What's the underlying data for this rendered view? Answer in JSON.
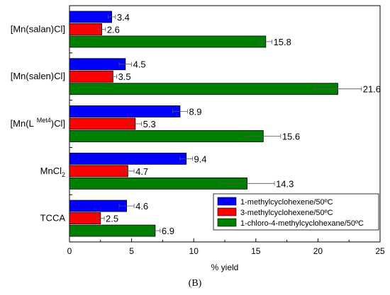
{
  "chart_data": {
    "type": "bar",
    "orientation": "horizontal",
    "categories": [
      "[Mn(salan)Cl]",
      "[Mn(salen)Cl]",
      "[Mn(L Met4)Cl]",
      "MnCl2",
      "TCCA"
    ],
    "category_display": [
      {
        "main": "[Mn(salan)Cl]",
        "sup": "",
        "sub": "",
        "tail": ""
      },
      {
        "main": "[Mn(salen)Cl]",
        "sup": "",
        "sub": "",
        "tail": ""
      },
      {
        "main": "[Mn(L",
        "sup": "Met4",
        "sub": "",
        "tail": ")Cl]"
      },
      {
        "main": "MnCl",
        "sup": "",
        "sub": "2",
        "tail": ""
      },
      {
        "main": "TCCA",
        "sup": "",
        "sub": "",
        "tail": ""
      }
    ],
    "series": [
      {
        "name": "1-methylcyclohexene/50ºC",
        "color": "#0000ff",
        "values": [
          3.4,
          4.5,
          8.9,
          9.4,
          4.6
        ],
        "errors": [
          0.3,
          0.5,
          0.6,
          0.5,
          0.6
        ]
      },
      {
        "name": "3-methylcyclohexene/50ºC",
        "color": "#ff0000",
        "values": [
          2.6,
          3.5,
          5.3,
          4.7,
          2.5
        ],
        "errors": [
          0.3,
          0.3,
          0.5,
          0.5,
          0.3
        ]
      },
      {
        "name": "1-chloro-4-methylcyclohexane/50ºC",
        "color": "#008000",
        "values": [
          15.8,
          21.6,
          15.6,
          14.3,
          6.9
        ],
        "errors": [
          0.5,
          1.9,
          1.4,
          2.2,
          0.4
        ]
      }
    ],
    "data_labels": [
      [
        "3.4",
        "4.5",
        "8.9",
        "9.4",
        "4.6"
      ],
      [
        "2.6",
        "3.5",
        "5.3",
        "4.7",
        "2.5"
      ],
      [
        "15.8",
        "21.6",
        "15.6",
        "14.3",
        "6.9"
      ]
    ],
    "xlabel": "% yield",
    "ylabel": "",
    "xlim": [
      0,
      25
    ],
    "xticks": [
      "0",
      "5",
      "10",
      "15",
      "20",
      "25"
    ],
    "grid": false,
    "legend_position": "bottom-right"
  },
  "panel_label": "(B)"
}
